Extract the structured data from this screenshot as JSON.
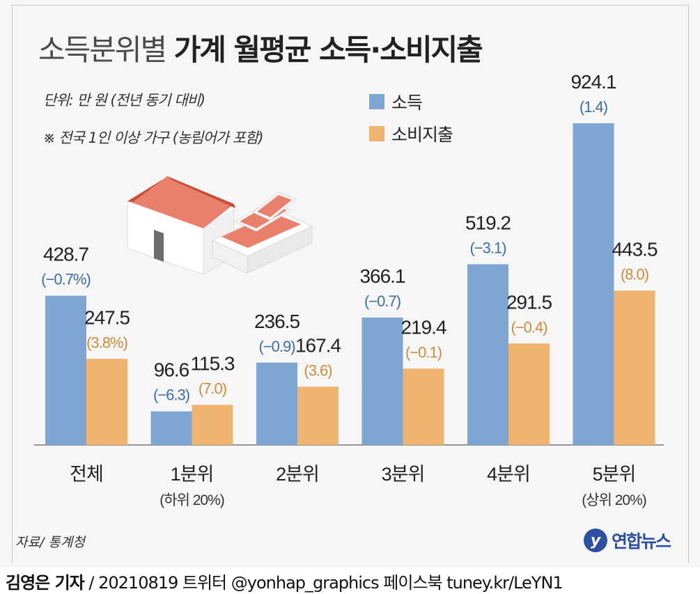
{
  "header": {
    "title_light": "소득분위별",
    "title_bold": "가계 월평균 소득·소비지출",
    "unit_note": "단위: 만 원 (전년 동기 대비)",
    "scope_note": "※ 전국 1인 이상 가구 (농림어가 포함)"
  },
  "legend": [
    {
      "label": "소득",
      "color": "#7fa6d3"
    },
    {
      "label": "소비지출",
      "color": "#efb46f"
    }
  ],
  "colors": {
    "income": "#7fa6d3",
    "spending": "#efb46f",
    "income_change_text": "#3a6ea8",
    "spending_change_text": "#cf8a3a",
    "value_text": "#222222"
  },
  "chart_data": {
    "type": "bar",
    "categories": [
      "전체",
      "1분위",
      "2분위",
      "3분위",
      "4분위",
      "5분위"
    ],
    "category_sublabels": [
      "",
      "(하위 20%)",
      "",
      "",
      "",
      "(상위 20%)"
    ],
    "series": [
      {
        "name": "소득",
        "values": [
          428.7,
          96.6,
          236.5,
          366.1,
          519.2,
          924.1
        ],
        "change_labels": [
          "(−0.7%)",
          "(−6.3)",
          "(−0.9)",
          "(−0.7)",
          "(−3.1)",
          "(1.4)"
        ]
      },
      {
        "name": "소비지출",
        "values": [
          247.5,
          115.3,
          167.4,
          219.4,
          291.5,
          443.5
        ],
        "change_labels": [
          "(3.8%)",
          "(7.0)",
          "(3.6)",
          "(−0.1)",
          "(−0.4)",
          "(8.0)"
        ]
      }
    ],
    "ylim": [
      0,
      924.1
    ],
    "grid": false,
    "legend_position": "top-center"
  },
  "footer": {
    "source": "자료/ 통계청",
    "logo_mark": "y",
    "logo_text": "연합뉴스",
    "reporter": "김영은 기자",
    "credit_rest": " / 20210819   트위터 @yonhap_graphics  페이스북 tuney.kr/LeYN1"
  }
}
